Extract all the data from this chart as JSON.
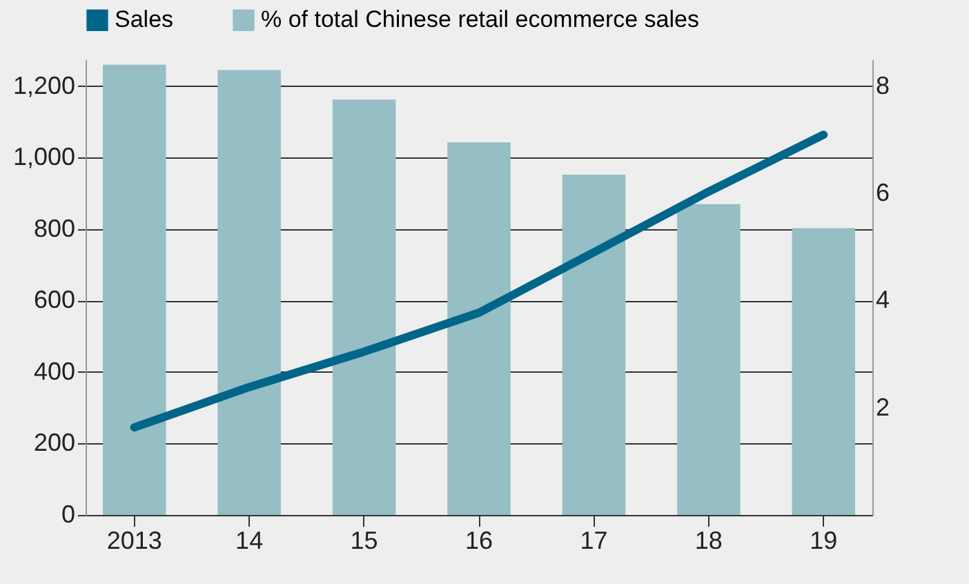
{
  "chart_data": {
    "type": "bar",
    "categories": [
      "2013",
      "14",
      "15",
      "16",
      "17",
      "18",
      "19"
    ],
    "series": [
      {
        "name": "Sales",
        "type": "line",
        "color": "#006689",
        "values": [
          245,
          358,
          457,
          566,
          735,
          905,
          1064
        ]
      },
      {
        "name": "% of total Chinese retail ecommerce sales",
        "type": "bar",
        "axis": "y2",
        "color": "#95bec5",
        "values": [
          8.4,
          8.3,
          7.75,
          6.95,
          6.35,
          5.8,
          5.35
        ]
      }
    ],
    "ylim": [
      0,
      1275
    ],
    "yticks": [
      0,
      200,
      400,
      600,
      800,
      {
        "value": 1000,
        "label": "1,000"
      },
      {
        "value": 1200,
        "label": "1,200"
      }
    ],
    "y2lim": [
      0,
      8.5
    ],
    "y2ticks": [
      2,
      4,
      6,
      8
    ],
    "grid": "y",
    "legend": "top"
  }
}
